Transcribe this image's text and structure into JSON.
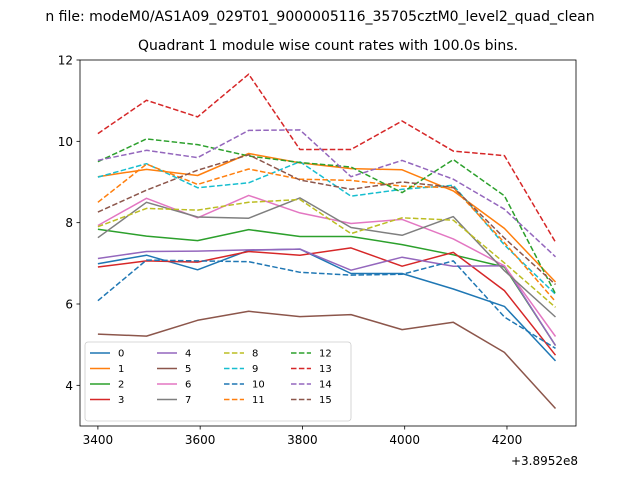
{
  "chart_data": {
    "type": "line",
    "suptitle": "n file: modeM0/AS1A09_029T01_9000005116_35705cztM0_level2_quad_clean",
    "title": "Quadrant 1 module wise count rates with 100.0s bins.",
    "xlabel": "",
    "ylabel": "",
    "x_offset_label": "+3.8952e8",
    "xlim": [
      3365,
      4335
    ],
    "ylim": [
      3.0,
      12.0
    ],
    "xticks": [
      3400,
      3600,
      3800,
      4000,
      4200
    ],
    "xtick_labels": [
      "3400",
      "3600",
      "3800",
      "4000",
      "4200"
    ],
    "yticks": [
      4,
      6,
      8,
      10,
      12
    ],
    "ytick_labels": [
      "4",
      "6",
      "8",
      "10",
      "12"
    ],
    "x": [
      3400,
      3495,
      3595,
      3695,
      3795,
      3895,
      3995,
      4095,
      4195,
      4295
    ],
    "legend_position": "lower-left",
    "series": [
      {
        "name": "0",
        "color": "#1f77b4",
        "dashed": false,
        "values": [
          6.99,
          7.2,
          6.84,
          7.32,
          7.35,
          6.75,
          6.75,
          6.37,
          5.94,
          4.6
        ]
      },
      {
        "name": "1",
        "color": "#ff7f0e",
        "dashed": false,
        "values": [
          9.13,
          9.31,
          9.16,
          9.7,
          9.47,
          9.33,
          9.3,
          8.78,
          7.86,
          6.54
        ]
      },
      {
        "name": "2",
        "color": "#2ca02c",
        "dashed": false,
        "values": [
          7.84,
          7.67,
          7.56,
          7.83,
          7.66,
          7.66,
          7.46,
          7.21,
          6.91,
          4.98
        ]
      },
      {
        "name": "3",
        "color": "#d62728",
        "dashed": false,
        "values": [
          6.91,
          7.06,
          7.03,
          7.29,
          7.2,
          7.38,
          6.93,
          7.27,
          6.33,
          4.74
        ]
      },
      {
        "name": "4",
        "color": "#9467bd",
        "dashed": false,
        "values": [
          7.12,
          7.29,
          7.3,
          7.33,
          7.35,
          6.83,
          7.15,
          6.93,
          6.94,
          4.98
        ]
      },
      {
        "name": "5",
        "color": "#8c564b",
        "dashed": false,
        "values": [
          5.26,
          5.21,
          5.6,
          5.82,
          5.69,
          5.74,
          5.37,
          5.55,
          4.81,
          3.43
        ]
      },
      {
        "name": "6",
        "color": "#e377c2",
        "dashed": false,
        "values": [
          7.93,
          8.6,
          8.12,
          8.67,
          8.24,
          7.98,
          8.08,
          7.6,
          6.94,
          5.2
        ]
      },
      {
        "name": "7",
        "color": "#7f7f7f",
        "dashed": false,
        "values": [
          7.63,
          8.5,
          8.14,
          8.11,
          8.61,
          7.88,
          7.69,
          8.15,
          6.82,
          5.68
        ]
      },
      {
        "name": "8",
        "color": "#bcbd22",
        "dashed": true,
        "values": [
          7.9,
          8.35,
          8.31,
          8.5,
          8.57,
          7.73,
          8.12,
          8.06,
          7.01,
          5.92
        ]
      },
      {
        "name": "9",
        "color": "#17becf",
        "dashed": true,
        "values": [
          9.12,
          9.45,
          8.86,
          8.98,
          9.5,
          8.65,
          8.82,
          8.92,
          7.45,
          6.24
        ]
      },
      {
        "name": "10",
        "color": "#1f77b4",
        "dashed": true,
        "values": [
          6.08,
          7.08,
          7.06,
          7.04,
          6.78,
          6.71,
          6.73,
          7.06,
          5.68,
          4.91
        ]
      },
      {
        "name": "11",
        "color": "#ff7f0e",
        "dashed": true,
        "values": [
          8.5,
          9.44,
          8.94,
          9.32,
          9.07,
          9.04,
          8.9,
          8.86,
          7.51,
          6.06
        ]
      },
      {
        "name": "12",
        "color": "#2ca02c",
        "dashed": true,
        "values": [
          9.5,
          10.06,
          9.92,
          9.64,
          9.48,
          9.37,
          8.74,
          9.55,
          8.66,
          6.25
        ]
      },
      {
        "name": "13",
        "color": "#d62728",
        "dashed": true,
        "values": [
          10.19,
          11.01,
          10.6,
          11.65,
          9.8,
          9.8,
          10.5,
          9.76,
          9.65,
          7.52
        ]
      },
      {
        "name": "14",
        "color": "#9467bd",
        "dashed": true,
        "values": [
          9.53,
          9.78,
          9.6,
          10.27,
          10.28,
          9.13,
          9.53,
          9.07,
          8.33,
          7.16
        ]
      },
      {
        "name": "15",
        "color": "#8c564b",
        "dashed": true,
        "values": [
          8.26,
          8.8,
          9.29,
          9.67,
          9.05,
          8.82,
          9.0,
          8.87,
          7.62,
          6.48
        ]
      }
    ]
  }
}
